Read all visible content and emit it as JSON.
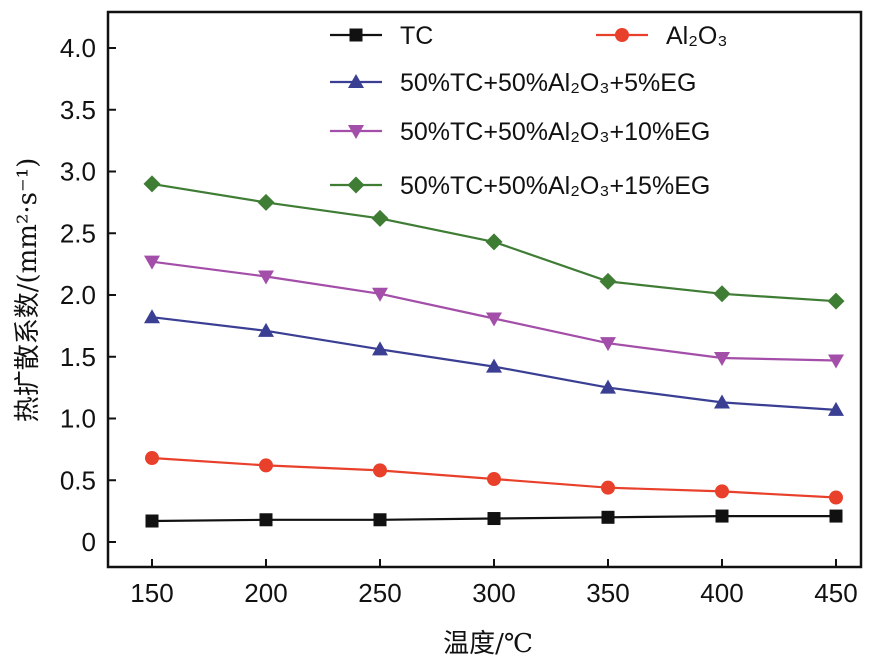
{
  "chart_data": {
    "type": "line",
    "xlabel": "温度/℃",
    "ylabel": "热扩散系数/(mm²·s⁻¹)",
    "x": [
      150,
      200,
      250,
      300,
      350,
      400,
      450
    ],
    "xlim": [
      150,
      450
    ],
    "ylim": [
      0,
      4.0
    ],
    "yticks": [
      "0",
      "0.5",
      "1.0",
      "1.5",
      "2.0",
      "2.5",
      "3.0",
      "3.5",
      "4.0"
    ],
    "grid": false,
    "legend_position": "top",
    "series": [
      {
        "name": "TC",
        "color": "#111111",
        "marker": "square",
        "values": [
          0.17,
          0.18,
          0.18,
          0.19,
          0.2,
          0.21,
          0.21
        ]
      },
      {
        "name": "Al₂O₃",
        "color": "#e8402a",
        "marker": "circle",
        "values": [
          0.68,
          0.62,
          0.58,
          0.51,
          0.44,
          0.41,
          0.36
        ]
      },
      {
        "name": "50%TC+50%Al₂O₃+5%EG",
        "color": "#3a3f94",
        "marker": "triangle-up",
        "values": [
          1.82,
          1.71,
          1.56,
          1.42,
          1.25,
          1.13,
          1.07
        ]
      },
      {
        "name": "50%TC+50%Al₂O₃+10%EG",
        "color": "#a34ea8",
        "marker": "triangle-down",
        "values": [
          2.27,
          2.15,
          2.01,
          1.81,
          1.61,
          1.49,
          1.47
        ]
      },
      {
        "name": "50%TC+50%Al₂O₃+15%EG",
        "color": "#3f7d35",
        "marker": "diamond",
        "values": [
          2.9,
          2.75,
          2.62,
          2.43,
          2.11,
          2.01,
          1.95
        ]
      }
    ]
  }
}
